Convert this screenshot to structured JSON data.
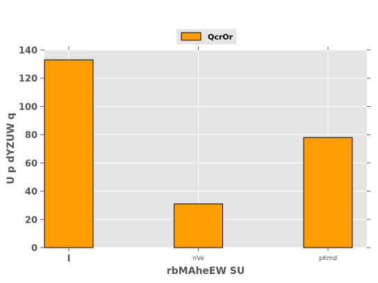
{
  "chart_data": {
    "type": "bar",
    "categories": [
      "I",
      "nVe",
      "pKmd"
    ],
    "series": [
      {
        "name": "QcrOr",
        "values": [
          133,
          31,
          78
        ]
      }
    ],
    "xlabel": "rbMAheEW SU",
    "ylabel": "U p dYZUW q",
    "ylim": [
      0,
      140
    ],
    "yticks": [
      0,
      20,
      40,
      60,
      80,
      100,
      120,
      140
    ],
    "grid": true,
    "legend_position": "top-center",
    "colors": {
      "bar": "#ff9c00",
      "bar_edge": "#000000",
      "plot_background": "#e5e5e5",
      "grid": "#ffffff",
      "text": "#555555"
    }
  }
}
